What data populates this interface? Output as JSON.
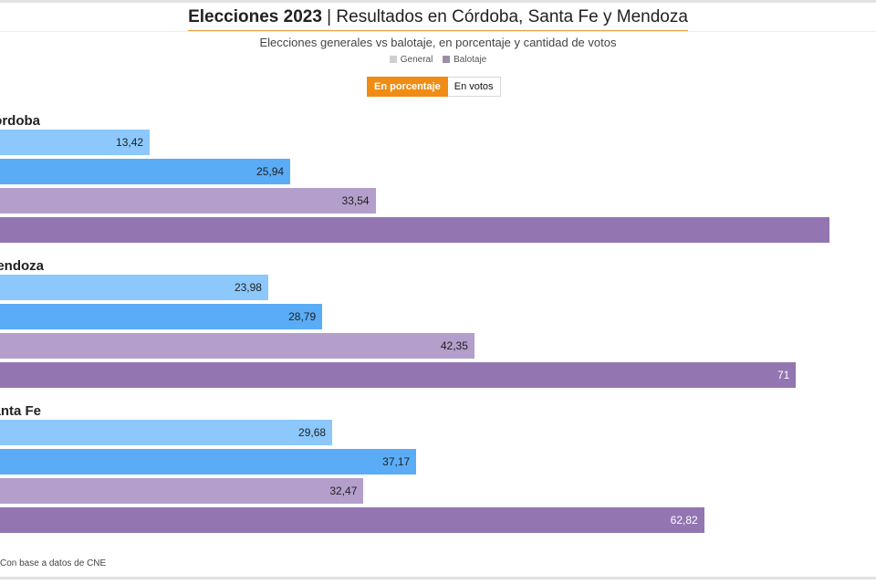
{
  "header": {
    "title_bold": "Elecciones 2023",
    "title_rest": " | Resultados en Córdoba, Santa Fe y Mendoza",
    "subtitle": "Elecciones generales vs balotaje, en porcentaje y cantidad de votos"
  },
  "legend": {
    "items": [
      {
        "label": "General",
        "color": "#cfcfcf"
      },
      {
        "label": "Balotaje",
        "color": "#9b8fa8"
      }
    ]
  },
  "toggle": {
    "percent_label": "En porcentaje",
    "votes_label": "En votos"
  },
  "colors": {
    "general_light": "#8cc8fc",
    "general_dark": "#5aacf7",
    "balotaje_light": "#b49ecb",
    "balotaje_dark": "#9275b1"
  },
  "chart_data": {
    "type": "bar",
    "orientation": "horizontal",
    "unit": "%",
    "groups": [
      {
        "label": "Córdoba",
        "values": [
          13.42,
          25.94,
          33.54,
          74.0
        ],
        "value_labels": [
          "13,42",
          "25,94",
          "33,54",
          ""
        ]
      },
      {
        "label": "Mendoza",
        "values": [
          23.98,
          28.79,
          42.35,
          71.0
        ],
        "value_labels": [
          "23,98",
          "28,79",
          "42,35",
          "71"
        ]
      },
      {
        "label": "Santa Fe",
        "values": [
          29.68,
          37.17,
          32.47,
          62.82
        ],
        "value_labels": [
          "29,68",
          "37,17",
          "32,47",
          "62,82"
        ]
      }
    ],
    "series_colors": [
      "general_light",
      "general_dark",
      "balotaje_light",
      "balotaje_dark"
    ]
  },
  "source": "Con base a datos de CNE"
}
